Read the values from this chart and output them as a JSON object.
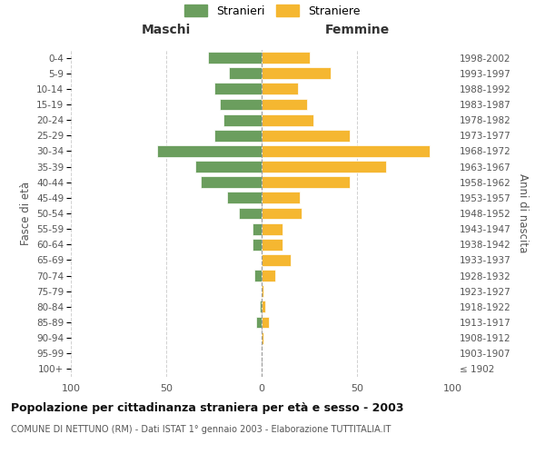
{
  "age_groups": [
    "100+",
    "95-99",
    "90-94",
    "85-89",
    "80-84",
    "75-79",
    "70-74",
    "65-69",
    "60-64",
    "55-59",
    "50-54",
    "45-49",
    "40-44",
    "35-39",
    "30-34",
    "25-29",
    "20-24",
    "15-19",
    "10-14",
    "5-9",
    "0-4"
  ],
  "birth_years": [
    "≤ 1902",
    "1903-1907",
    "1908-1912",
    "1913-1917",
    "1918-1922",
    "1923-1927",
    "1928-1932",
    "1933-1937",
    "1938-1942",
    "1943-1947",
    "1948-1952",
    "1953-1957",
    "1958-1962",
    "1963-1967",
    "1968-1972",
    "1973-1977",
    "1978-1982",
    "1983-1987",
    "1988-1992",
    "1993-1997",
    "1998-2002"
  ],
  "males": [
    0,
    0,
    0,
    3,
    1,
    0,
    4,
    0,
    5,
    5,
    12,
    18,
    32,
    35,
    55,
    25,
    20,
    22,
    25,
    17,
    28
  ],
  "females": [
    0,
    0,
    1,
    4,
    2,
    1,
    7,
    15,
    11,
    11,
    21,
    20,
    46,
    65,
    88,
    46,
    27,
    24,
    19,
    36,
    25
  ],
  "male_color": "#6b9e5e",
  "female_color": "#f5b731",
  "background_color": "#ffffff",
  "grid_color": "#cccccc",
  "xlim": 100,
  "title": "Popolazione per cittadinanza straniera per età e sesso - 2003",
  "subtitle": "COMUNE DI NETTUNO (RM) - Dati ISTAT 1° gennaio 2003 - Elaborazione TUTTITALIA.IT",
  "legend_male": "Stranieri",
  "legend_female": "Straniere",
  "xlabel_left": "Maschi",
  "xlabel_right": "Femmine",
  "ylabel_left": "Fasce di età",
  "ylabel_right": "Anni di nascita"
}
